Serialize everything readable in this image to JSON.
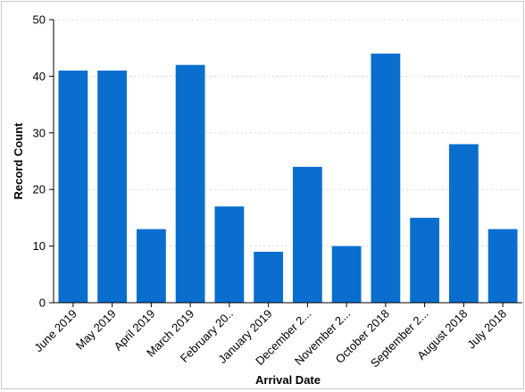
{
  "chart_data": {
    "type": "bar",
    "title": "",
    "xlabel": "Arrival Date",
    "ylabel": "Record Count",
    "categories": [
      "June 2019",
      "May 2019",
      "April 2019",
      "March 2019",
      "February 20..",
      "January 2019",
      "December 2...",
      "November 2...",
      "October 2018",
      "September 2...",
      "August 2018",
      "July 2018"
    ],
    "values": [
      41,
      41,
      13,
      42,
      17,
      9,
      24,
      10,
      44,
      15,
      28,
      13
    ],
    "ylim": [
      0,
      50
    ],
    "yticks": [
      0,
      10,
      20,
      30,
      40,
      50
    ],
    "grid": true,
    "bar_color": "#0a6ecf"
  }
}
